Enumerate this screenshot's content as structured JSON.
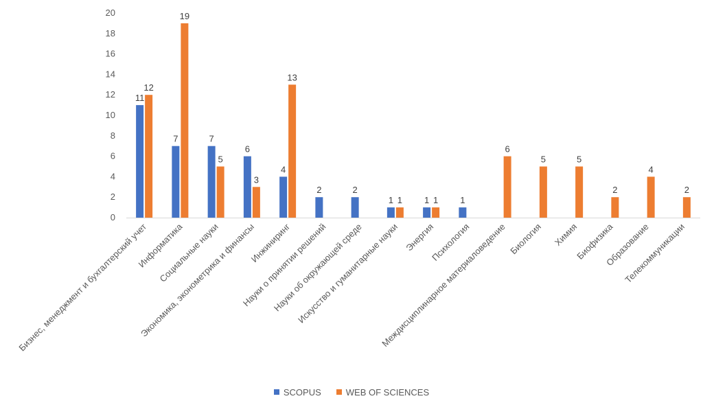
{
  "chart_data": {
    "type": "bar",
    "categories": [
      "Бизнес, менеджмент и бухгалтерский учет",
      "Информатика",
      "Социальные науки",
      "Экономика, эконометрика и финансы",
      "Инжиниринг",
      "Науки о принятии решений",
      "Науки об окружающей среде",
      "Искусство и гуманитарные науки",
      "Энергия",
      "Психология",
      "Междисциплинарное материаловедение",
      "Биология",
      "Химия",
      "Биофизика",
      "Образование",
      "Телекоммуникации"
    ],
    "series": [
      {
        "name": "SCOPUS",
        "color": "#4472C4",
        "values": [
          11,
          7,
          7,
          6,
          4,
          2,
          2,
          1,
          1,
          1,
          null,
          null,
          null,
          null,
          null,
          null
        ]
      },
      {
        "name": "WEB OF SCIENCES",
        "color": "#ED7D31",
        "values": [
          12,
          19,
          5,
          3,
          13,
          null,
          null,
          1,
          1,
          null,
          6,
          5,
          5,
          2,
          4,
          2
        ]
      }
    ],
    "ylim": [
      0,
      20
    ],
    "yticks": [
      0,
      2,
      4,
      6,
      8,
      10,
      12,
      14,
      16,
      18,
      20
    ],
    "grid": false,
    "data_labels": true,
    "legend_position": "bottom",
    "title": "",
    "xlabel": "",
    "ylabel": ""
  }
}
